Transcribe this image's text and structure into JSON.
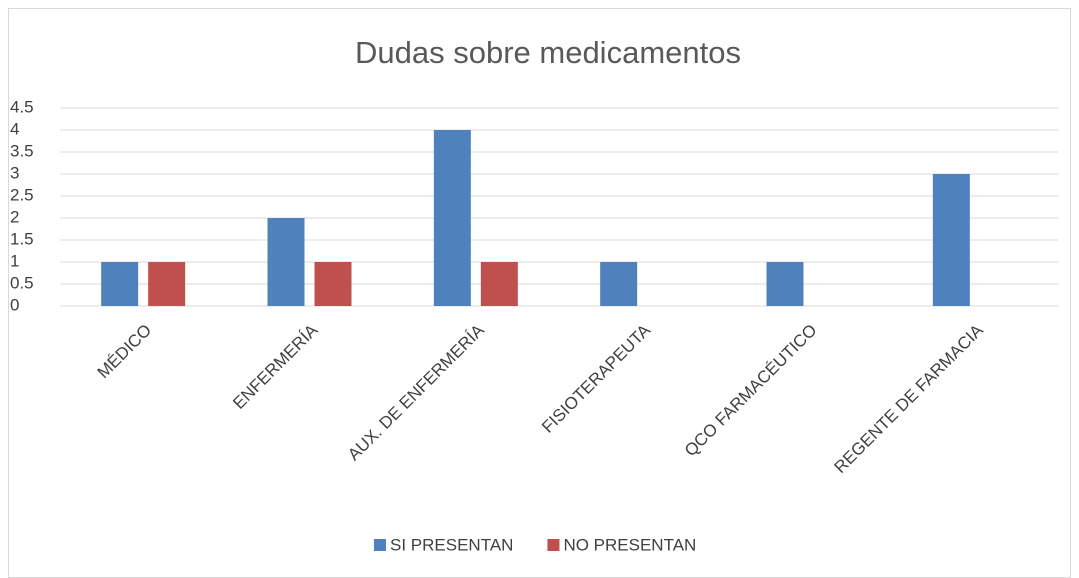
{
  "chart_data": {
    "type": "bar",
    "title": "Dudas sobre medicamentos",
    "categories": [
      "MÉDICO",
      "ENFERMERÍA",
      "AUX. DE ENFERMERÍA",
      "FISIOTERAPEUTA",
      "QCO FARMACÉUTICO",
      "REGENTE DE FARMACIA"
    ],
    "series": [
      {
        "name": "SI PRESENTAN",
        "color": "#4f81bd",
        "values": [
          1,
          2,
          4,
          1,
          1,
          3
        ]
      },
      {
        "name": "NO PRESENTAN",
        "color": "#c0504d",
        "values": [
          1,
          1,
          1,
          0,
          0,
          0
        ]
      }
    ],
    "ylim": [
      0,
      4.5
    ],
    "yticks": [
      0,
      0.5,
      1,
      1.5,
      2,
      2.5,
      3,
      3.5,
      4,
      4.5
    ],
    "grid": true,
    "legend": "bottom"
  }
}
